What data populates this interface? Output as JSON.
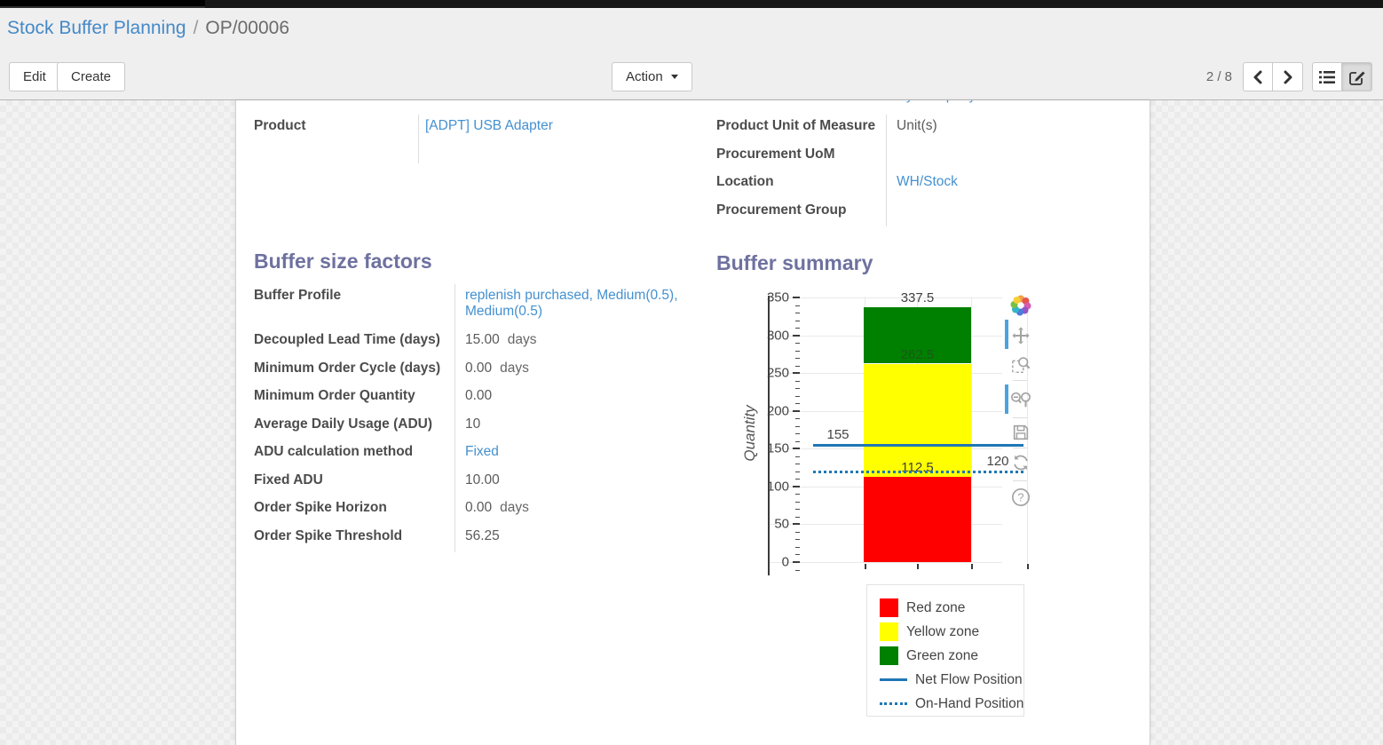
{
  "breadcrumb": {
    "parent": "Stock Buffer Planning",
    "separator": "/",
    "current": "OP/00006"
  },
  "toolbar": {
    "edit": "Edit",
    "create": "Create",
    "action": "Action"
  },
  "pager": {
    "position": "2 / 8"
  },
  "icons": {
    "pager_prev": "chevron-left-icon",
    "pager_next": "chevron-right-icon",
    "view_list": "list-view-icon",
    "view_form": "form-view-icon",
    "action_caret": "caret-down-icon",
    "modebar": [
      "plotly-logo-icon",
      "pan-icon",
      "box-zoom-icon",
      "zoom-in-out-icon",
      "save-icon",
      "reset-axes-icon",
      "help-icon"
    ]
  },
  "form": {
    "partial_top_value": "My Company",
    "left_group": [
      {
        "label": "Product",
        "value": "[ADPT] USB Adapter",
        "link": true
      }
    ],
    "right_group": [
      {
        "label": "Product Unit of Measure",
        "value": "Unit(s)",
        "link": false
      },
      {
        "label": "Procurement UoM",
        "value": "",
        "link": false
      },
      {
        "label": "Location",
        "value": "WH/Stock",
        "link": true
      },
      {
        "label": "Procurement Group",
        "value": "",
        "link": false
      }
    ],
    "sections": {
      "buffer_size_factors": {
        "title": "Buffer size factors",
        "rows": [
          {
            "label": "Buffer Profile",
            "value": "replenish purchased, Medium(0.5), Medium(0.5)",
            "link": true
          },
          {
            "label": "Decoupled Lead Time (days)",
            "value": "15.00",
            "suffix": "days"
          },
          {
            "label": "Minimum Order Cycle (days)",
            "value": "0.00",
            "suffix": "days"
          },
          {
            "label": "Minimum Order Quantity",
            "value": "0.00"
          },
          {
            "label": "Average Daily Usage (ADU)",
            "value": "10"
          },
          {
            "label": "ADU calculation method",
            "value": "Fixed",
            "link": true
          },
          {
            "label": "Fixed ADU",
            "value": "10.00"
          },
          {
            "label": "Order Spike Horizon",
            "value": "0.00",
            "suffix": "days"
          },
          {
            "label": "Order Spike Threshold",
            "value": "56.25"
          }
        ]
      },
      "buffer_summary": {
        "title": "Buffer summary"
      }
    }
  },
  "chart_data": {
    "type": "bar",
    "stacked": true,
    "title": "",
    "xlabel": "",
    "ylabel": "Quantity",
    "ylim": [
      0,
      350
    ],
    "ytick_step": 50,
    "ytick_minor_step": 10,
    "grid": true,
    "categories": [
      ""
    ],
    "series": [
      {
        "name": "Red zone",
        "color": "#ff0000",
        "values": [
          112.5
        ],
        "top_label": "112.5"
      },
      {
        "name": "Yellow zone",
        "color": "#ffff00",
        "values": [
          150.0
        ],
        "top_label": "262.5"
      },
      {
        "name": "Green zone",
        "color": "#008000",
        "values": [
          75.0
        ],
        "top_label": "337.5"
      }
    ],
    "reference_lines": [
      {
        "name": "Net Flow Position",
        "value": 155,
        "label": "155",
        "style": "solid",
        "color": "#1f77b4",
        "label_side": "left"
      },
      {
        "name": "On-Hand Position",
        "value": 120,
        "label": "120",
        "style": "dotted",
        "color": "#1f77b4",
        "label_side": "right"
      }
    ],
    "legend_position": "below-right",
    "legend": [
      {
        "label": "Red zone",
        "type": "box",
        "color": "#ff0000"
      },
      {
        "label": "Yellow zone",
        "type": "box",
        "color": "#ffff00"
      },
      {
        "label": "Green zone",
        "type": "box",
        "color": "#008000"
      },
      {
        "label": "Net Flow Position",
        "type": "solid-line",
        "color": "#1f77b4"
      },
      {
        "label": "On-Hand Position",
        "type": "dotted-line",
        "color": "#1f77b4"
      }
    ]
  }
}
